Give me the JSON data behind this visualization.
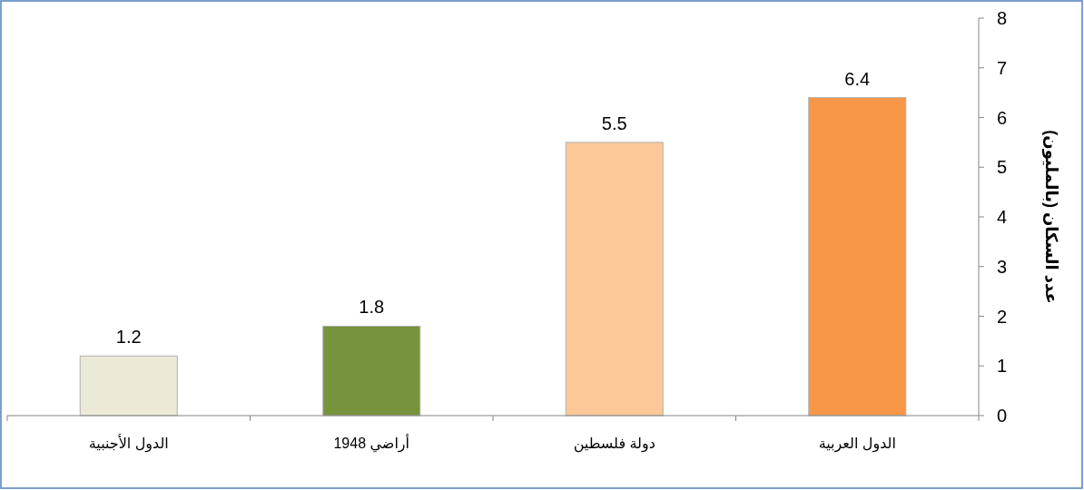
{
  "chart_data": {
    "type": "bar",
    "categories": [
      "الدول الأجنبية",
      "أراضي 1948",
      "دولة فلسطين",
      "الدول العربية"
    ],
    "values": [
      1.2,
      1.8,
      5.5,
      6.4
    ],
    "colors": [
      "#ece9d6",
      "#77933c",
      "#fcc898",
      "#f79646"
    ],
    "ylabel": "عدد السكان (بالمليون)",
    "ylim": [
      0,
      8
    ],
    "yticks": [
      0,
      1,
      2,
      3,
      4,
      5,
      6,
      7,
      8
    ],
    "data_labels": true,
    "grid": false
  }
}
